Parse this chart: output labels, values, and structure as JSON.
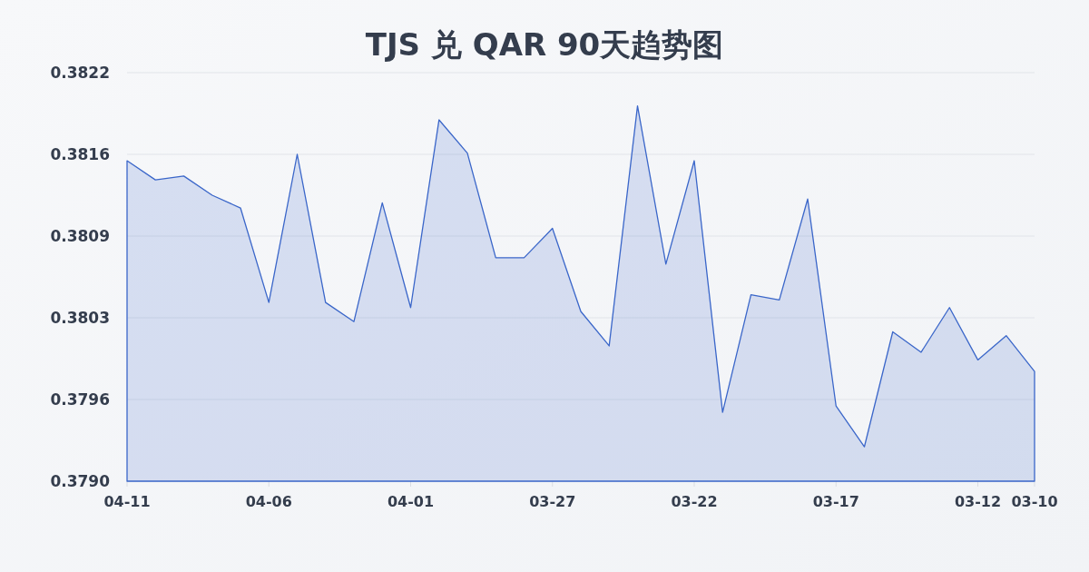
{
  "chart_data": {
    "type": "area",
    "title": "TJS 兑 QAR 90天趋势图",
    "x": [
      "--04-11",
      "--04-10",
      "--04-09",
      "--04-08",
      "--04-07",
      "--04-06",
      "--04-05",
      "--04-04",
      "--04-03",
      "--04-02",
      "--04-01",
      "--03-31",
      "--03-30",
      "--03-29",
      "--03-28",
      "--03-27",
      "--03-26",
      "--03-25",
      "--03-24",
      "--03-23",
      "--03-22",
      "--03-21",
      "--03-20",
      "--03-19",
      "--03-18",
      "--03-17",
      "--03-16",
      "--03-15",
      "--03-14",
      "--03-13",
      "--03-12",
      "--03-11",
      "--03-10"
    ],
    "series": [
      {
        "color": "#3a66c9",
        "values": [
          0.38151,
          0.38136,
          0.38139,
          0.38124,
          0.38114,
          0.3804,
          0.38156,
          0.3804,
          0.38025,
          0.38118,
          0.38036,
          0.38183,
          0.38157,
          0.38075,
          0.38075,
          0.38098,
          0.38033,
          0.38006,
          0.38194,
          0.3807,
          0.38151,
          0.37954,
          0.38046,
          0.38042,
          0.38121,
          0.37959,
          0.37927,
          0.38017,
          0.38001,
          0.38036,
          0.37995,
          0.38014,
          0.37986
        ]
      }
    ],
    "xlim": [
      "--04-11",
      "--03-10"
    ],
    "xticks": [
      {
        "value": "--04-11",
        "label": "04-11"
      },
      {
        "value": "--04-06",
        "label": "04-06"
      },
      {
        "value": "--04-01",
        "label": "04-01"
      },
      {
        "value": "--03-27",
        "label": "03-27"
      },
      {
        "value": "--03-22",
        "label": "03-22"
      },
      {
        "value": "--03-17",
        "label": "03-17"
      },
      {
        "value": "--03-12",
        "label": "03-12"
      },
      {
        "value": "--03-10",
        "label": "03-10"
      }
    ],
    "ylim": [
      0.379,
      0.3822
    ],
    "yticks": [
      {
        "value": 0.379,
        "label": "0.3790"
      },
      {
        "value": 0.37964,
        "label": "0.3796"
      },
      {
        "value": 0.38028,
        "label": "0.3803"
      },
      {
        "value": 0.38092,
        "label": "0.3809"
      },
      {
        "value": 0.38156,
        "label": "0.3816"
      },
      {
        "value": 0.3822,
        "label": "0.3822"
      }
    ],
    "grid": "y"
  }
}
